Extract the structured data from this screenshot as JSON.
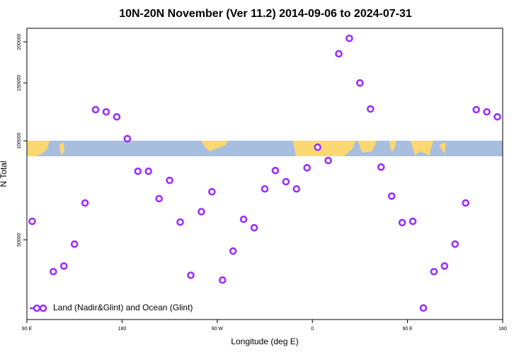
{
  "chart_data": {
    "type": "scatter",
    "title": "10N-20N November (Ver 11.2)   2014-09-06 to 2024-07-31",
    "x_label": "Longitude (deg E)",
    "y_label": "N Total",
    "yscale": "log",
    "xlim": [
      90,
      540
    ],
    "ylim": [
      28600,
      220000
    ],
    "xticks": [
      {
        "value": 90,
        "label": "90 E"
      },
      180,
      {
        "value": 270,
        "label": "90 W"
      },
      {
        "value": 360,
        "label": "0"
      },
      {
        "value": 450,
        "label": "90 E"
      },
      {
        "value": 540,
        "label": "180"
      }
    ],
    "yticks": [
      50000,
      100000,
      150000,
      200000
    ],
    "legend": "bottom-left",
    "series": [
      {
        "name": "Land (Nadir&Glint) and Ocean (Glint)",
        "color": "#9b30ff",
        "x": [
          95,
          115,
          125,
          135,
          145,
          155,
          165,
          175,
          185,
          195,
          205,
          215,
          225,
          235,
          245,
          255,
          265,
          275,
          285,
          295,
          305,
          315,
          325,
          335,
          345,
          355,
          365,
          375,
          385,
          395,
          405,
          415,
          425,
          435,
          445,
          455,
          465,
          475,
          485,
          495,
          505,
          515,
          525,
          535
        ],
        "values": [
          56900,
          40000,
          41600,
          48500,
          64700,
          124400,
          122500,
          118300,
          101500,
          80800,
          80800,
          66700,
          75800,
          56600,
          39000,
          60900,
          70000,
          37700,
          46200,
          57700,
          54400,
          71400,
          81200,
          75100,
          71400,
          82800,
          95600,
          87100,
          184000,
          205000,
          150000,
          125000,
          83200,
          67900,
          56400,
          56900,
          31000,
          40000,
          41600,
          48500,
          64700,
          124400,
          122500,
          118300
        ]
      }
    ]
  }
}
